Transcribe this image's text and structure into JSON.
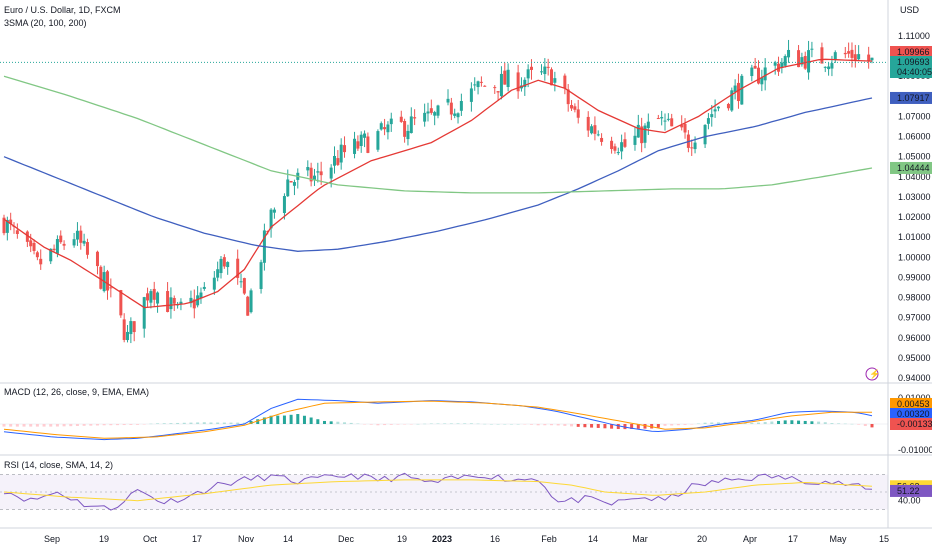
{
  "header": {
    "symbol_title": "Euro / U.S. Dollar, 1D, FXCM",
    "indicator_sma": "3SMA (20, 100, 200)",
    "currency": "USD",
    "macd_title": "MACD (12, 26, close, 9, EMA, EMA)",
    "rsi_title": "RSI (14, close, SMA, 14, 2)"
  },
  "price_axis": {
    "ticks": [
      "1.11000",
      "1.10000",
      "1.09000",
      "1.08000",
      "1.07000",
      "1.06000",
      "1.05000",
      "1.04000",
      "1.03000",
      "1.02000",
      "1.01000",
      "1.00000",
      "0.99000",
      "0.98000",
      "0.97000",
      "0.96000",
      "0.95000",
      "0.94000"
    ],
    "badges": {
      "last_price": "1.09966",
      "current_price": "1.09693",
      "countdown": "04:40:05",
      "sma100": "1.07917",
      "sma200": "1.04444"
    }
  },
  "macd_axis": {
    "ticks": [
      "0.01000",
      "-0.01000"
    ],
    "badges": {
      "signal": "0.00453",
      "macd": "0.00320",
      "histogram": "-0.00133"
    }
  },
  "rsi_axis": {
    "ticks": [
      "40.00"
    ],
    "badges": {
      "rsi_ma": "56.63",
      "rsi": "51.22"
    }
  },
  "time_axis": {
    "labels": [
      "Sep",
      "19",
      "Oct",
      "17",
      "Nov",
      "14",
      "Dec",
      "19",
      "2023",
      "16",
      "Feb",
      "14",
      "Mar",
      "20",
      "Apr",
      "17",
      "May",
      "15"
    ]
  },
  "colors": {
    "up": "#26a69a",
    "down": "#ef5350",
    "sma20": "#e53935",
    "sma100": "#3f5fbf",
    "sma200": "#81c784",
    "macd_line": "#2962ff",
    "signal_line": "#ff9800",
    "rsi_line": "#7e57c2",
    "rsi_ma": "#fdd835"
  },
  "chart_data": [
    {
      "type": "candlestick",
      "title": "Euro / U.S. Dollar, 1D, FXCM",
      "ylabel": "USD",
      "ylim": [
        0.94,
        1.115
      ],
      "x_range": [
        "2022-08-22",
        "2023-05-09"
      ],
      "close_series": [
        {
          "date": "2022-08-22",
          "close": 1.018
        },
        {
          "date": "2022-09-01",
          "close": 0.996
        },
        {
          "date": "2022-09-12",
          "close": 1.011
        },
        {
          "date": "2022-09-22",
          "close": 0.984
        },
        {
          "date": "2022-09-28",
          "close": 0.96
        },
        {
          "date": "2022-10-05",
          "close": 0.986
        },
        {
          "date": "2022-10-13",
          "close": 0.972
        },
        {
          "date": "2022-10-21",
          "close": 0.982
        },
        {
          "date": "2022-10-27",
          "close": 0.999
        },
        {
          "date": "2022-11-03",
          "close": 0.976
        },
        {
          "date": "2022-11-10",
          "close": 1.02
        },
        {
          "date": "2022-11-15",
          "close": 1.038
        },
        {
          "date": "2022-11-24",
          "close": 1.04
        },
        {
          "date": "2022-12-01",
          "close": 1.051
        },
        {
          "date": "2022-12-15",
          "close": 1.063
        },
        {
          "date": "2022-12-30",
          "close": 1.07
        },
        {
          "date": "2023-01-12",
          "close": 1.085
        },
        {
          "date": "2023-01-26",
          "close": 1.089
        },
        {
          "date": "2023-02-02",
          "close": 1.091
        },
        {
          "date": "2023-02-10",
          "close": 1.068
        },
        {
          "date": "2023-02-24",
          "close": 1.055
        },
        {
          "date": "2023-03-06",
          "close": 1.068
        },
        {
          "date": "2023-03-15",
          "close": 1.058
        },
        {
          "date": "2023-03-24",
          "close": 1.076
        },
        {
          "date": "2023-04-05",
          "close": 1.091
        },
        {
          "date": "2023-04-14",
          "close": 1.099
        },
        {
          "date": "2023-04-24",
          "close": 1.099
        },
        {
          "date": "2023-05-04",
          "close": 1.101
        },
        {
          "date": "2023-05-09",
          "close": 1.0969
        }
      ],
      "sma": [
        {
          "name": "SMA 20",
          "points": [
            [
              0,
              1.019
            ],
            [
              12,
              1.005
            ],
            [
              20,
              0.9985
            ],
            [
              30,
              0.988
            ],
            [
              42,
              0.975
            ],
            [
              55,
              0.977
            ],
            [
              64,
              0.983
            ],
            [
              72,
              0.994
            ],
            [
              80,
              1.015
            ],
            [
              95,
              1.035
            ],
            [
              110,
              1.048
            ],
            [
              128,
              1.057
            ],
            [
              140,
              1.068
            ],
            [
              152,
              1.083
            ],
            [
              160,
              1.088
            ],
            [
              168,
              1.084
            ],
            [
              178,
              1.073
            ],
            [
              190,
              1.064
            ],
            [
              198,
              1.062
            ],
            [
              208,
              1.07
            ],
            [
              220,
              1.083
            ],
            [
              232,
              1.094
            ],
            [
              245,
              1.0985
            ],
            [
              260,
              1.0975
            ]
          ]
        },
        {
          "name": "SMA 100",
          "points": [
            [
              0,
              1.05
            ],
            [
              15,
              1.04
            ],
            [
              30,
              1.03
            ],
            [
              45,
              1.02
            ],
            [
              60,
              1.012
            ],
            [
              75,
              1.006
            ],
            [
              88,
              1.003
            ],
            [
              100,
              1.004
            ],
            [
              115,
              1.008
            ],
            [
              130,
              1.013
            ],
            [
              145,
              1.019
            ],
            [
              160,
              1.026
            ],
            [
              172,
              1.034
            ],
            [
              184,
              1.043
            ],
            [
              196,
              1.053
            ],
            [
              210,
              1.06
            ],
            [
              225,
              1.065
            ],
            [
              240,
              1.072
            ],
            [
              260,
              1.0792
            ]
          ]
        },
        {
          "name": "SMA 200",
          "points": [
            [
              0,
              1.09
            ],
            [
              20,
              1.08
            ],
            [
              40,
              1.069
            ],
            [
              60,
              1.056
            ],
            [
              80,
              1.043
            ],
            [
              100,
              1.036
            ],
            [
              120,
              1.033
            ],
            [
              140,
              1.032
            ],
            [
              160,
              1.032
            ],
            [
              180,
              1.033
            ],
            [
              200,
              1.034
            ],
            [
              215,
              1.034
            ],
            [
              230,
              1.036
            ],
            [
              245,
              1.04
            ],
            [
              260,
              1.0444
            ]
          ]
        }
      ]
    },
    {
      "type": "line",
      "title": "MACD (12, 26, close, 9, EMA, EMA)",
      "ylim": [
        -0.013,
        0.013
      ],
      "series": [
        {
          "name": "MACD",
          "points": [
            [
              0,
              -0.003
            ],
            [
              15,
              -0.005
            ],
            [
              30,
              -0.006
            ],
            [
              40,
              -0.0055
            ],
            [
              50,
              -0.004
            ],
            [
              62,
              -0.002
            ],
            [
              72,
              0.0
            ],
            [
              80,
              0.006
            ],
            [
              88,
              0.0095
            ],
            [
              100,
              0.009
            ],
            [
              112,
              0.008
            ],
            [
              128,
              0.009
            ],
            [
              140,
              0.0085
            ],
            [
              155,
              0.007
            ],
            [
              165,
              0.005
            ],
            [
              175,
              0.002
            ],
            [
              185,
              -0.001
            ],
            [
              195,
              -0.003
            ],
            [
              205,
              -0.002
            ],
            [
              215,
              0.0
            ],
            [
              225,
              0.0015
            ],
            [
              235,
              0.0045
            ],
            [
              245,
              0.005
            ],
            [
              255,
              0.0045
            ],
            [
              260,
              0.0032
            ]
          ]
        },
        {
          "name": "Signal",
          "points": [
            [
              0,
              -0.002
            ],
            [
              15,
              -0.004
            ],
            [
              30,
              -0.0055
            ],
            [
              45,
              -0.005
            ],
            [
              60,
              -0.003
            ],
            [
              72,
              -0.0005
            ],
            [
              84,
              0.0045
            ],
            [
              96,
              0.008
            ],
            [
              112,
              0.0085
            ],
            [
              128,
              0.0088
            ],
            [
              145,
              0.008
            ],
            [
              160,
              0.0065
            ],
            [
              172,
              0.004
            ],
            [
              185,
              0.001
            ],
            [
              198,
              -0.002
            ],
            [
              210,
              -0.0015
            ],
            [
              222,
              0.0005
            ],
            [
              235,
              0.003
            ],
            [
              248,
              0.0045
            ],
            [
              260,
              0.0045
            ]
          ]
        }
      ]
    },
    {
      "type": "line",
      "title": "RSI (14, close, SMA, 14, 2)",
      "ylim": [
        20,
        80
      ],
      "series": [
        {
          "name": "RSI",
          "points": [
            [
              0,
              52
            ],
            [
              8,
              40
            ],
            [
              16,
              50
            ],
            [
              24,
              36
            ],
            [
              32,
              30
            ],
            [
              40,
              52
            ],
            [
              48,
              38
            ],
            [
              56,
              46
            ],
            [
              64,
              58
            ],
            [
              72,
              64
            ],
            [
              80,
              68
            ],
            [
              88,
              62
            ],
            [
              96,
              66
            ],
            [
              104,
              70
            ],
            [
              112,
              64
            ],
            [
              120,
              68
            ],
            [
              128,
              60
            ],
            [
              136,
              66
            ],
            [
              144,
              70
            ],
            [
              152,
              64
            ],
            [
              160,
              66
            ],
            [
              166,
              38
            ],
            [
              174,
              42
            ],
            [
              182,
              36
            ],
            [
              190,
              44
            ],
            [
              198,
              40
            ],
            [
              206,
              56
            ],
            [
              214,
              62
            ],
            [
              222,
              66
            ],
            [
              230,
              68
            ],
            [
              238,
              64
            ],
            [
              246,
              62
            ],
            [
              254,
              58
            ],
            [
              260,
              51.22
            ]
          ]
        },
        {
          "name": "RSI MA",
          "points": [
            [
              0,
              50
            ],
            [
              20,
              44
            ],
            [
              40,
              40
            ],
            [
              60,
              48
            ],
            [
              80,
              58
            ],
            [
              100,
              62
            ],
            [
              120,
              64
            ],
            [
              140,
              64
            ],
            [
              160,
              62
            ],
            [
              170,
              58
            ],
            [
              180,
              50
            ],
            [
              195,
              46
            ],
            [
              210,
              50
            ],
            [
              225,
              58
            ],
            [
              240,
              61
            ],
            [
              260,
              56.63
            ]
          ]
        }
      ]
    }
  ]
}
